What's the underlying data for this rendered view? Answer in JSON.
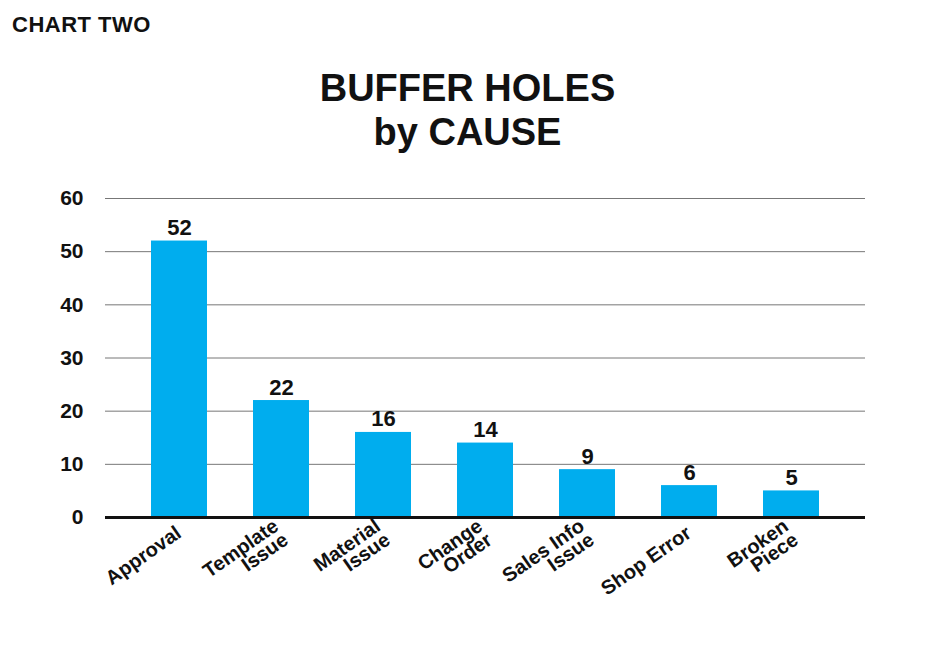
{
  "chart_data": {
    "type": "bar",
    "annotations": [
      "CHART TWO"
    ],
    "title": "BUFFER HOLES",
    "subtitle": "by CAUSE",
    "categories": [
      "Approval",
      "Template\nIssue",
      "Material\nIssue",
      "Change\nOrder",
      "Sales Info\nIssue",
      "Shop Error",
      "Broken\nPiece"
    ],
    "values": [
      52,
      22,
      16,
      14,
      9,
      6,
      5
    ],
    "color": "#00adee",
    "ylim": [
      0,
      60
    ],
    "yticks": [
      0,
      10,
      20,
      30,
      40,
      50,
      60
    ],
    "grid": true,
    "data_labels": true
  }
}
